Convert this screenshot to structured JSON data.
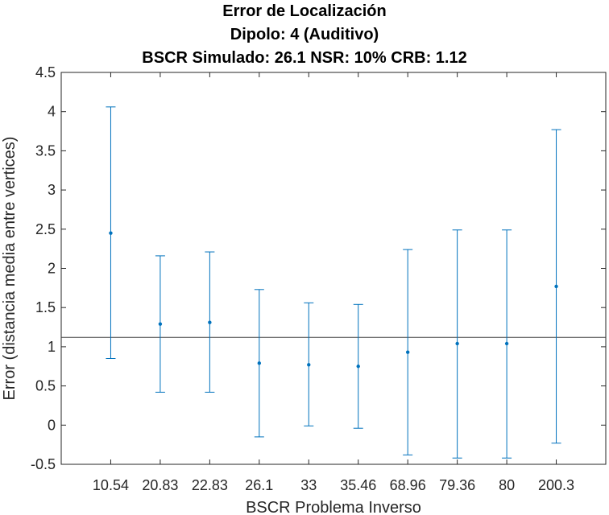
{
  "chart_data": {
    "type": "errorbar",
    "title": "Error de Localización",
    "subtitle_lines": [
      "Dipolo: 4 (Auditivo)",
      "BSCR Simulado: 26.1 NSR: 10% CRB: 1.12"
    ],
    "xlabel": "BSCR Problema Inverso",
    "ylabel": "Error (distancia media entre vertices)",
    "categories": [
      "10.54",
      "20.83",
      "22.83",
      "26.1",
      "33",
      "35.46",
      "68.96",
      "79.36",
      "80",
      "200.3"
    ],
    "values": [
      2.45,
      1.29,
      1.31,
      0.79,
      0.77,
      0.75,
      0.93,
      1.04,
      1.04,
      1.77
    ],
    "lower": [
      0.85,
      0.42,
      0.42,
      -0.15,
      -0.01,
      -0.04,
      -0.38,
      -0.42,
      -0.42,
      -0.23
    ],
    "upper": [
      4.06,
      2.16,
      2.21,
      1.73,
      1.56,
      1.54,
      2.24,
      2.49,
      2.49,
      3.77
    ],
    "reference_line": 1.12,
    "ylim": [
      -0.5,
      4.5
    ],
    "yticks": [
      "-0.5",
      "0",
      "0.5",
      "1",
      "1.5",
      "2",
      "2.5",
      "3",
      "3.5",
      "4",
      "4.5"
    ],
    "grid": false,
    "colors": {
      "series": "#0072BD",
      "reference": "#404040",
      "axis": "#262626"
    }
  }
}
